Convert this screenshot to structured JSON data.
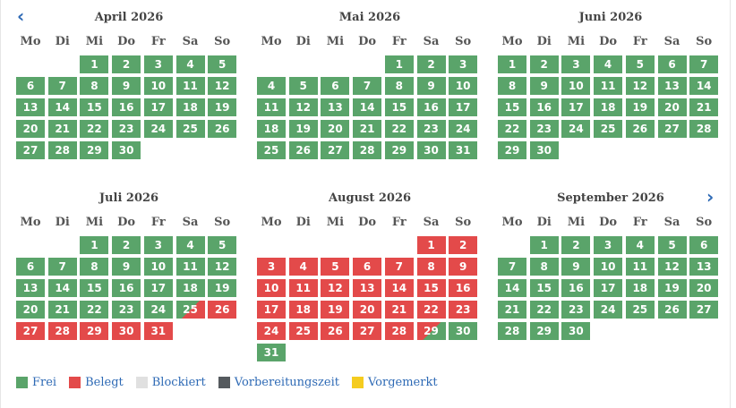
{
  "nav": {
    "prev": "‹",
    "next": "›"
  },
  "weekdays": [
    "Mo",
    "Di",
    "Mi",
    "Do",
    "Fr",
    "Sa",
    "So"
  ],
  "colors": {
    "frei": "#5aa46a",
    "belegt": "#e34a4a",
    "blockiert": "#e0e0e0",
    "vorbereitung": "#555a5e",
    "vorgemerkt": "#f5cc1f"
  },
  "months": [
    {
      "title": "April 2026",
      "offset": 2,
      "days": 30,
      "status": {}
    },
    {
      "title": "Mai 2026",
      "offset": 4,
      "days": 31,
      "status": {}
    },
    {
      "title": "Juni 2026",
      "offset": 0,
      "days": 30,
      "status": {}
    },
    {
      "title": "Juli 2026",
      "offset": 2,
      "days": 31,
      "status": {
        "25": "ci",
        "26": "belegt",
        "27": "belegt",
        "28": "belegt",
        "29": "belegt",
        "30": "belegt",
        "31": "belegt"
      }
    },
    {
      "title": "August 2026",
      "offset": 5,
      "days": 31,
      "status": {
        "1": "belegt",
        "2": "belegt",
        "3": "belegt",
        "4": "belegt",
        "5": "belegt",
        "6": "belegt",
        "7": "belegt",
        "8": "belegt",
        "9": "belegt",
        "10": "belegt",
        "11": "belegt",
        "12": "belegt",
        "13": "belegt",
        "14": "belegt",
        "15": "belegt",
        "16": "belegt",
        "17": "belegt",
        "18": "belegt",
        "19": "belegt",
        "20": "belegt",
        "21": "belegt",
        "22": "belegt",
        "23": "belegt",
        "24": "belegt",
        "25": "belegt",
        "26": "belegt",
        "27": "belegt",
        "28": "belegt",
        "29": "co"
      }
    },
    {
      "title": "September 2026",
      "offset": 1,
      "days": 30,
      "status": {}
    }
  ],
  "legend": [
    {
      "key": "frei",
      "label": "Frei",
      "color": "#5aa46a"
    },
    {
      "key": "belegt",
      "label": "Belegt",
      "color": "#e34a4a"
    },
    {
      "key": "blockiert",
      "label": "Blockiert",
      "color": "#e0e0e0"
    },
    {
      "key": "vorbereitung",
      "label": "Vorbereitungszeit",
      "color": "#555a5e"
    },
    {
      "key": "vorgemerkt",
      "label": "Vorgemerkt",
      "color": "#f5cc1f"
    }
  ]
}
